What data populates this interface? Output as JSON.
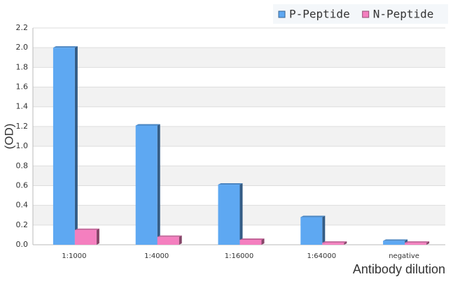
{
  "chart_data": {
    "type": "bar",
    "y_label": "(OD)",
    "x_label": "Antibody dilution",
    "categories": [
      "1:1000",
      "1:4000",
      "1:16000",
      "1:64000",
      "negative"
    ],
    "series": [
      {
        "name": "P-Peptide",
        "color": "#5ea8f2",
        "values": [
          2.0,
          1.21,
          0.61,
          0.28,
          0.04
        ]
      },
      {
        "name": "N-Peptide",
        "color": "#f47fbf",
        "values": [
          0.15,
          0.08,
          0.05,
          0.02,
          0.02
        ]
      }
    ],
    "ylim": [
      0,
      2.2
    ],
    "yticks": [
      {
        "value": 0,
        "label": "0.0"
      },
      0.2,
      0.4,
      0.6,
      0.8,
      {
        "value": 1,
        "label": "1.0"
      },
      1.2,
      1.4,
      1.6,
      1.8,
      {
        "value": 2,
        "label": "2.0"
      },
      2.2
    ],
    "grid": true,
    "legend": "top-right"
  }
}
